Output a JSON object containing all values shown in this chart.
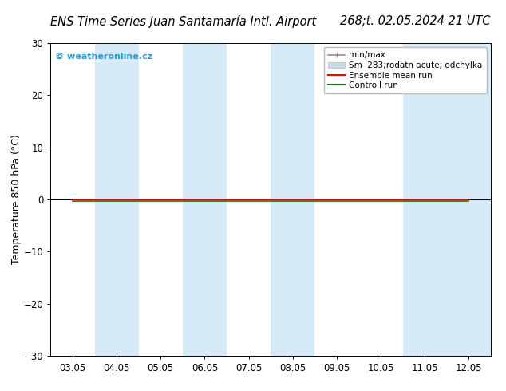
{
  "title_left": "ENS Time Series Juan Santamaría Intl. Airport",
  "title_right": "268;t. 02.05.2024 21 UTC",
  "ylabel": "Temperature 850 hPa (°C)",
  "ylim": [
    -30,
    30
  ],
  "yticks": [
    -30,
    -20,
    -10,
    0,
    10,
    20,
    30
  ],
  "xlabels": [
    "03.05",
    "04.05",
    "05.05",
    "06.05",
    "07.05",
    "08.05",
    "09.05",
    "10.05",
    "11.05",
    "12.05"
  ],
  "bg_color": "#ffffff",
  "plot_bg_color": "#ffffff",
  "band_color": "#d6eaf8",
  "ensemble_mean_color": "#ff0000",
  "control_run_color": "#008000",
  "minmax_color": "#909090",
  "std_color": "#c8dcea",
  "watermark": "© weatheronline.cz",
  "watermark_color": "#3399cc",
  "legend_label_minmax": "min/max",
  "legend_label_std": "Sm  283;rodatn acute; odchylka",
  "legend_label_ens": "Ensemble mean run",
  "legend_label_ctrl": "Controll run",
  "title_fontsize": 10.5,
  "axis_fontsize": 9,
  "tick_fontsize": 8.5
}
